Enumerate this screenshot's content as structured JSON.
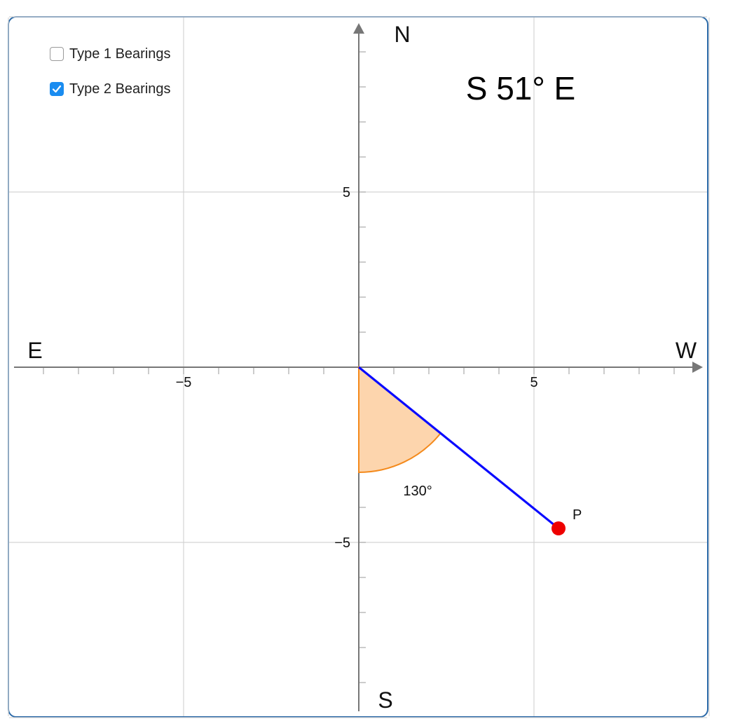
{
  "controls": {
    "type1": {
      "label": "Type 1 Bearings",
      "checked": false
    },
    "type2": {
      "label": "Type 2 Bearings",
      "checked": true
    }
  },
  "bearing_text": "S 51° E",
  "directions": {
    "north": "N",
    "south": "S",
    "east": "E",
    "west": "W"
  },
  "axis": {
    "x_range": [
      -10,
      10
    ],
    "y_range": [
      -10,
      10
    ],
    "major_step": 5,
    "minor_step": 1,
    "x_tick_labels": [
      {
        "value": -5,
        "text": "−5"
      },
      {
        "value": 5,
        "text": "5"
      }
    ],
    "y_tick_labels": [
      {
        "value": 5,
        "text": "5"
      },
      {
        "value": -5,
        "text": "−5"
      }
    ],
    "grid": true
  },
  "point": {
    "label": "P",
    "x": 5.7,
    "y": -4.6
  },
  "angle": {
    "label": "130°",
    "radius": 3
  },
  "colors": {
    "segment": "#0a0aff",
    "point": "#ee0000",
    "sector_fill": "#fdd5ad",
    "sector_stroke": "#f48a1c",
    "axis": "#777777",
    "grid": "#d4d4d4",
    "checkbox": "#1a8cf0"
  }
}
